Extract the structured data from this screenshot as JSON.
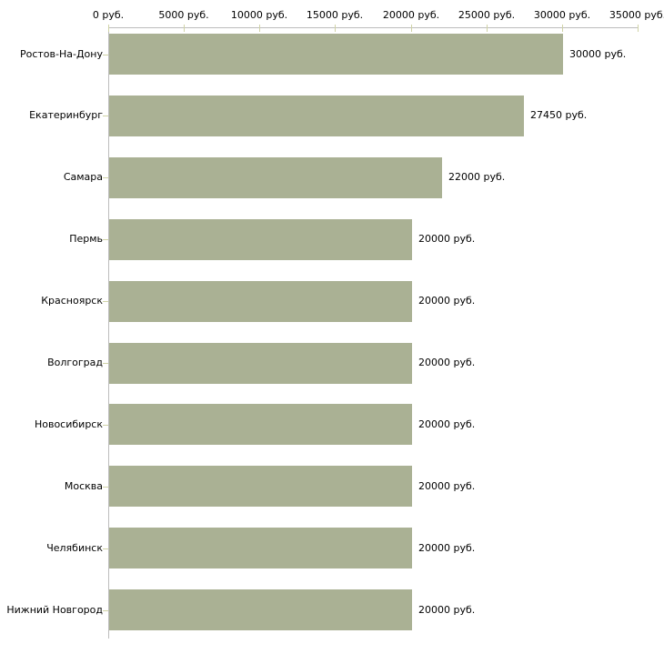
{
  "chart_data": {
    "type": "bar",
    "orientation": "horizontal",
    "title": "",
    "categories": [
      "Ростов-На-Дону",
      "Екатеринбург",
      "Самара",
      "Пермь",
      "Красноярск",
      "Волгоград",
      "Новосибирск",
      "Москва",
      "Челябинск",
      "Нижний Новгород"
    ],
    "values": [
      30000,
      27450,
      22000,
      20000,
      20000,
      20000,
      20000,
      20000,
      20000,
      20000
    ],
    "value_labels": [
      "30000 руб.",
      "27450 руб.",
      "22000 руб.",
      "20000 руб.",
      "20000 руб.",
      "20000 руб.",
      "20000 руб.",
      "20000 руб.",
      "20000 руб.",
      "20000 руб."
    ],
    "x_axis": {
      "position": "top",
      "min": 0,
      "max": 35000,
      "tick_values": [
        0,
        5000,
        10000,
        15000,
        20000,
        25000,
        30000,
        35000
      ],
      "tick_labels": [
        "0 руб.",
        "5000 руб.",
        "10000 руб.",
        "15000 руб.",
        "20000 руб.",
        "25000 руб.",
        "30000 руб.",
        "35000 руб."
      ]
    },
    "unit": "руб.",
    "legend": "none",
    "grid": "off",
    "colors": {
      "bar": "#aab194",
      "axis_line": "#bdbdbd",
      "tick_mark": "#d0d3a6",
      "text": "#000000",
      "background": "#ffffff"
    }
  }
}
